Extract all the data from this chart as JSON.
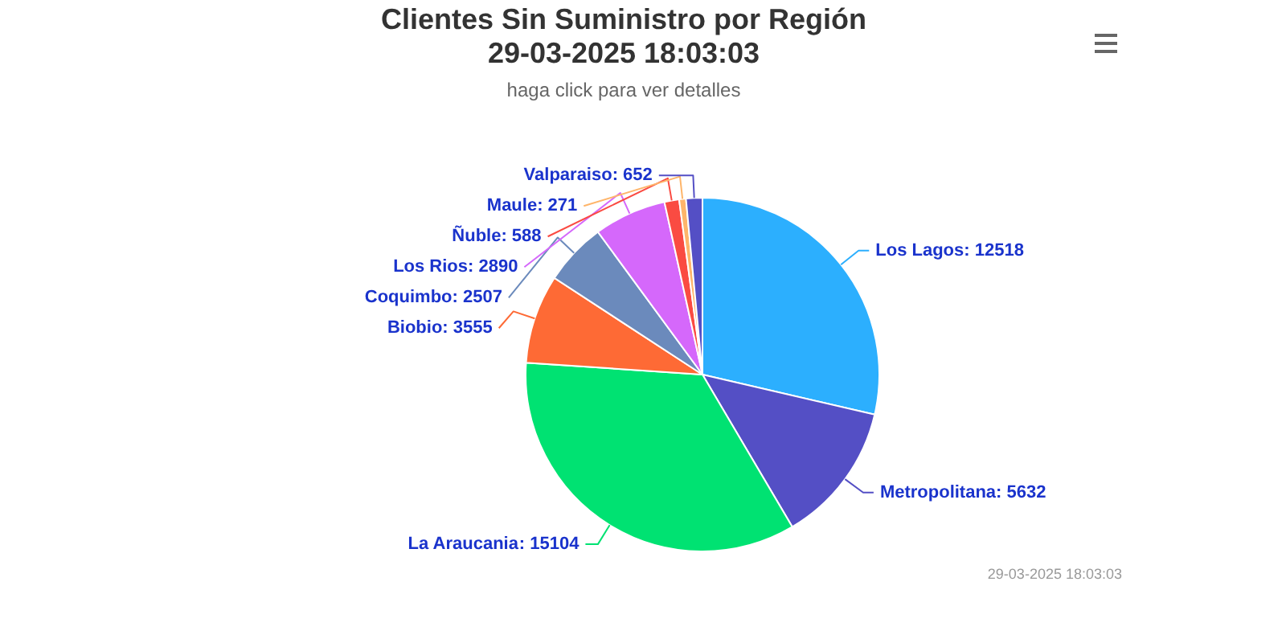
{
  "chart_data": {
    "type": "pie",
    "title": "Clientes Sin Suministro por Región\n29-03-2025 18:03:03",
    "subtitle": "haga click para ver detalles",
    "categories": [
      "Los Lagos",
      "Metropolitana",
      "La Araucania",
      "Biobio",
      "Coquimbo",
      "Los Rios",
      "Ñuble",
      "Maule",
      "Valparaiso"
    ],
    "values": [
      12518,
      5632,
      15104,
      3555,
      2507,
      2890,
      588,
      271,
      652
    ],
    "colors": [
      "#2caffe",
      "#544fc5",
      "#00e272",
      "#fe6a35",
      "#6b8abc",
      "#d568fb",
      "#fa4b42",
      "#feb56a",
      "#544fc5"
    ],
    "value_labels": [
      ": 12518",
      ": 5632",
      ": 15104",
      ": 3555",
      ": 2507",
      ": 2890",
      ": 588",
      ": 271",
      ": 652"
    ],
    "annotations": [
      "29-03-2025 18:03:03"
    ]
  }
}
